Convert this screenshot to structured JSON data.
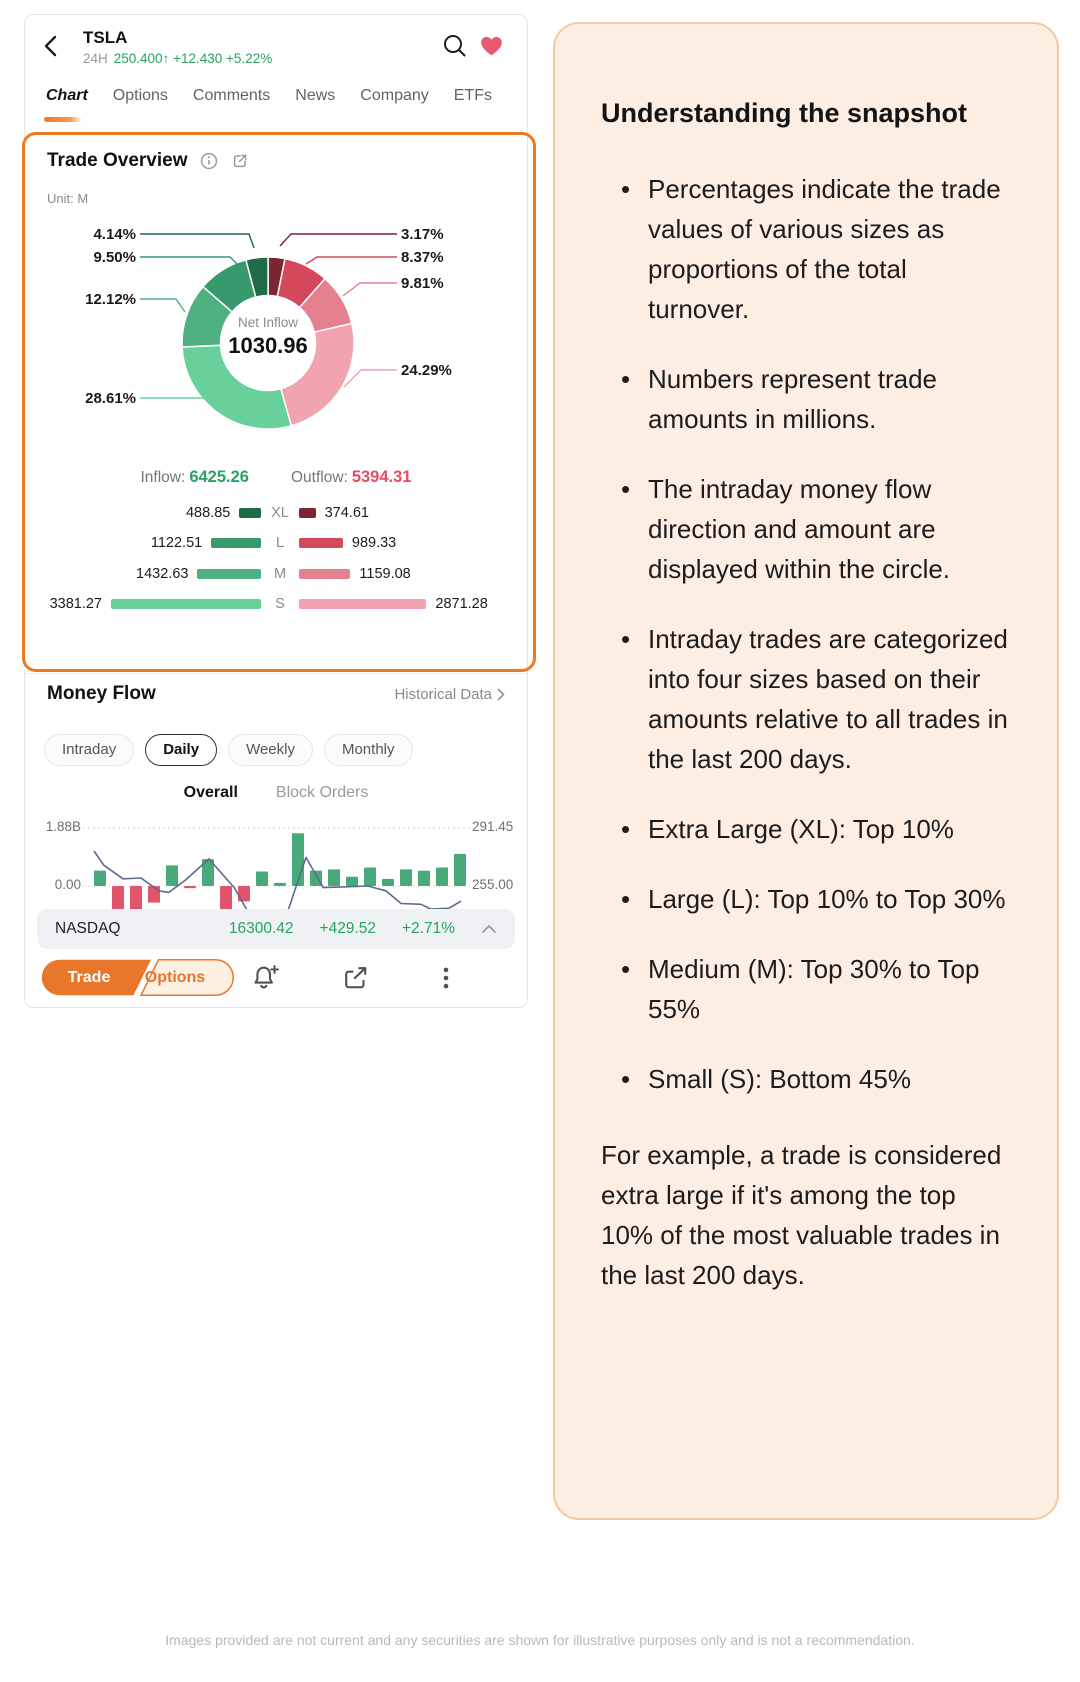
{
  "header": {
    "symbol": "TSLA",
    "period": "24H",
    "price": "250.400",
    "arrow": "↑",
    "change": "+12.430",
    "change_pct": "+5.22%"
  },
  "tabs": [
    {
      "label": "Chart"
    },
    {
      "label": "Options"
    },
    {
      "label": "Comments"
    },
    {
      "label": "News"
    },
    {
      "label": "Company"
    },
    {
      "label": "ETFs"
    }
  ],
  "trade_overview": {
    "title": "Trade Overview",
    "unit_label": "Unit: M",
    "center_label": "Net Inflow",
    "center_value": "1030.96",
    "inflow_label": "Inflow:",
    "inflow_value": "6425.26",
    "outflow_label": "Outflow:",
    "outflow_value": "5394.31"
  },
  "money_flow": {
    "title": "Money Flow",
    "link": "Historical Data",
    "periods": [
      "Intraday",
      "Daily",
      "Weekly",
      "Monthly"
    ],
    "selected_period": "Daily",
    "subtabs": [
      "Overall",
      "Block Orders"
    ],
    "selected_subtab": "Overall",
    "y_left_top": "1.88B",
    "y_left_zero": "0.00",
    "y_right_top": "291.45",
    "y_right_zero": "255.00"
  },
  "nasdaq": {
    "name": "NASDAQ",
    "value": "16300.42",
    "change": "+429.52",
    "change_pct": "+2.71%"
  },
  "toolbar": {
    "trade_label": "Trade",
    "options_label": "Options"
  },
  "chart_data": [
    {
      "id": "trade-overview-donut",
      "type": "pie",
      "title": "Trade Overview",
      "unit": "M",
      "center": {
        "label": "Net Inflow",
        "value": 1030.96
      },
      "totals": {
        "inflow": 6425.26,
        "outflow": 5394.31
      },
      "slices_clockwise_from_top": [
        {
          "label": "3.17%",
          "pct": 3.17,
          "series": "Outflow XL",
          "color": "#7d2631"
        },
        {
          "label": "8.37%",
          "pct": 8.37,
          "series": "Outflow L",
          "color": "#d5475a"
        },
        {
          "label": "9.81%",
          "pct": 9.81,
          "series": "Outflow M",
          "color": "#e5808e"
        },
        {
          "label": "24.29%",
          "pct": 24.29,
          "series": "Outflow S",
          "color": "#f1a3af"
        },
        {
          "label": "28.61%",
          "pct": 28.61,
          "series": "Inflow S",
          "color": "#68d09a"
        },
        {
          "label": "12.12%",
          "pct": 12.12,
          "series": "Inflow M",
          "color": "#4fb181"
        },
        {
          "label": "9.50%",
          "pct": 9.5,
          "series": "Inflow L",
          "color": "#37996c"
        },
        {
          "label": "4.14%",
          "pct": 4.14,
          "series": "Inflow XL",
          "color": "#1e6b47"
        }
      ],
      "size_breakdown": [
        {
          "size": "XL",
          "inflow": 488.85,
          "outflow": 374.61,
          "inflow_color": "#1e6b47",
          "outflow_color": "#7d2631"
        },
        {
          "size": "L",
          "inflow": 1122.51,
          "outflow": 989.33,
          "inflow_color": "#37996c",
          "outflow_color": "#d5475a"
        },
        {
          "size": "M",
          "inflow": 1432.63,
          "outflow": 1159.08,
          "inflow_color": "#4fb181",
          "outflow_color": "#e5808e"
        },
        {
          "size": "S",
          "inflow": 3381.27,
          "outflow": 2871.28,
          "inflow_color": "#68d09a",
          "outflow_color": "#f1a3af"
        }
      ]
    },
    {
      "id": "money-flow-daily",
      "type": "bar+line",
      "bar_axis": {
        "top_label": "1.88B",
        "zero_label": "0.00",
        "range": [
          0,
          1.88
        ]
      },
      "price_axis": {
        "top_label": "291.45",
        "zero_label": "255.00",
        "range": [
          255.0,
          291.45
        ]
      },
      "bars_net_flow_B": [
        0.5,
        -0.91,
        -0.91,
        -0.54,
        0.67,
        -0.07,
        0.87,
        -0.97,
        -0.5,
        0.47,
        0.1,
        1.71,
        0.5,
        0.54,
        0.3,
        0.6,
        0.23,
        0.54,
        0.5,
        0.6,
        1.04
      ],
      "bar_colors": {
        "positive": "#4aa97a",
        "negative": "#e0556a"
      },
      "price_line": {
        "color": "#5c6a8e",
        "points": [
          [
            0.013,
            277
          ],
          [
            0.039,
            268
          ],
          [
            0.089,
            259.5
          ],
          [
            0.136,
            260
          ],
          [
            0.183,
            252
          ],
          [
            0.209,
            251
          ],
          [
            0.254,
            259
          ],
          [
            0.314,
            272
          ],
          [
            0.38,
            254
          ],
          [
            0.416,
            239
          ],
          [
            0.432,
            235.5
          ],
          [
            0.469,
            234.5
          ],
          [
            0.516,
            236
          ],
          [
            0.568,
            273
          ],
          [
            0.613,
            254
          ],
          [
            0.673,
            254.5
          ],
          [
            0.73,
            255
          ],
          [
            0.777,
            252
          ],
          [
            0.817,
            244
          ],
          [
            0.869,
            243.5
          ],
          [
            0.895,
            240.5
          ],
          [
            0.942,
            241
          ],
          [
            0.974,
            245.5
          ]
        ]
      }
    }
  ],
  "panel": {
    "title": "Understanding the snapshot",
    "bullets": [
      "Percentages indicate the trade values of various sizes as proportions of the total turnover.",
      "Numbers represent trade amounts in millions.",
      "The intraday money flow direction and amount are displayed within the circle.",
      "Intraday trades are categorized into four sizes based on their amounts relative to all trades in the last 200 days.",
      "Extra Large (XL): Top 10%",
      "Large (L): Top 10% to Top 30%",
      "Medium (M): Top 30% to Top 55%",
      "Small (S): Bottom 45%"
    ],
    "example": "For example, a trade is considered extra large if it's among the top 10% of the most valuable trades in the last 200 days."
  },
  "footer": "Images provided are not current and any securities are shown for illustrative purposes only and is not a recommendation."
}
